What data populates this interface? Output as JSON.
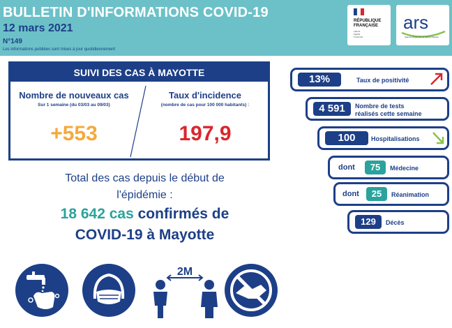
{
  "header": {
    "title": "BULLETIN D'INFORMATIONS COVID-19",
    "date": "12 mars 2021",
    "number": "N°149",
    "note": "Les informations publiées sont mises à jour quotidiennement",
    "logo_rf": [
      "RÉPUBLIQUE",
      "FRANÇAISE"
    ],
    "logo_rf_motto": [
      "Liberté",
      "Égalité",
      "Fraternité"
    ],
    "logo_ars": "ars",
    "logo_ars_sub": "Agence Régionale de Santé Mayotte"
  },
  "cases": {
    "title": "SUIVI DES CAS À MAYOTTE",
    "new_cases_label": "Nombre de nouveaux cas",
    "new_cases_sub": "Sur 1 semaine (du 03/03 au 09/03)",
    "new_cases_value": "+553",
    "incidence_label": "Taux d'incidence",
    "incidence_sub": "(nombre de cas pour 100 000 habitants) :",
    "incidence_value": "197,9"
  },
  "total": {
    "line1": "Total des cas depuis le début de",
    "line2": "l'épidémie :",
    "count": "18 642 cas",
    "suffix": "confirmés de",
    "line4": "COVID-19 à Mayotte"
  },
  "stats": {
    "positivity": {
      "value": "13%",
      "label": "Taux de positivité",
      "trend": "up"
    },
    "tests": {
      "value": "4 591",
      "label1": "Nombre de tests",
      "label2": "réalisés cette semaine"
    },
    "hosp": {
      "value": "100",
      "label": "Hospitalisations",
      "trend": "down"
    },
    "medecine": {
      "prefix": "dont",
      "value": "75",
      "label": "Médecine"
    },
    "reanimation": {
      "prefix": "dont",
      "value": "25",
      "label": "Réanimation"
    },
    "deces": {
      "value": "129",
      "label": "Décès"
    }
  },
  "icons": [
    "hand-washing-icon",
    "face-mask-icon",
    "distance-2m-icon",
    "no-handshake-icon"
  ],
  "distance_label": "2M",
  "colors": {
    "navy": "#1d3f87",
    "teal": "#2aa39c",
    "orange": "#f4a93b",
    "red": "#d9262c",
    "header_bg": "#6cc1c8"
  }
}
